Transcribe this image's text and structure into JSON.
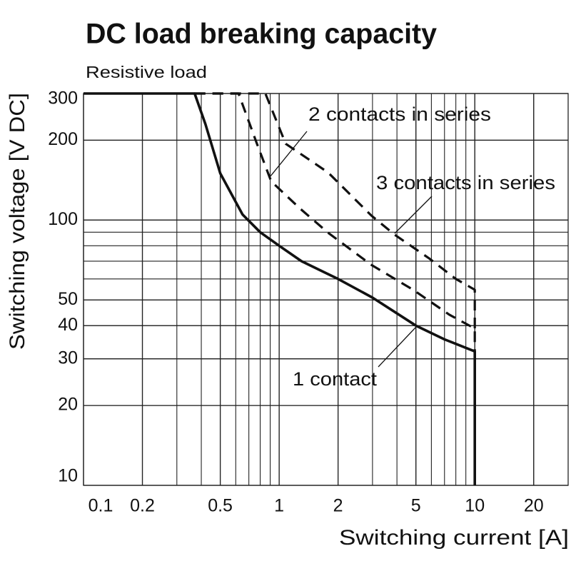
{
  "chart_data": {
    "type": "line",
    "title": "DC load breaking capacity",
    "subtitle": "Resistive load",
    "x_label": "Switching current [A]",
    "y_label": "Switching voltage [V DC]",
    "x_log": true,
    "y_log": true,
    "grid": true,
    "minor_grid": true,
    "xlim": [
      0.1,
      30
    ],
    "ylim": [
      10,
      300
    ],
    "xticks": [
      0.1,
      0.2,
      0.5,
      1,
      2,
      5,
      10,
      20
    ],
    "yticks": [
      10,
      20,
      30,
      40,
      50,
      100,
      200,
      300
    ],
    "series": [
      {
        "name": "1 contact",
        "color": "#111111",
        "line_style": "solid",
        "x": [
          0.1,
          0.37,
          0.42,
          0.5,
          0.65,
          0.8,
          1,
          1.3,
          2,
          3,
          5,
          7,
          10,
          10
        ],
        "values": [
          300,
          300,
          230,
          150,
          105,
          90,
          80,
          70,
          60,
          51,
          40,
          35.5,
          32,
          10
        ]
      },
      {
        "name": "2 contacts in series",
        "color": "#111111",
        "line_style": "dashed",
        "x": [
          0.37,
          0.62,
          0.77,
          0.91,
          1.27,
          1.78,
          2.96,
          4.84,
          7.4,
          10,
          10
        ],
        "values": [
          300,
          300,
          194,
          140,
          111,
          89.5,
          67.8,
          54.6,
          44,
          39,
          32
        ]
      },
      {
        "name": "3 contacts in series",
        "color": "#111111",
        "line_style": "dashed",
        "x": [
          0.37,
          0.85,
          1.08,
          1.78,
          2.96,
          3.9,
          5.8,
          8,
          10,
          10
        ],
        "values": [
          300,
          300,
          194,
          151,
          104,
          88,
          72,
          60,
          54.6,
          39
        ]
      }
    ]
  }
}
